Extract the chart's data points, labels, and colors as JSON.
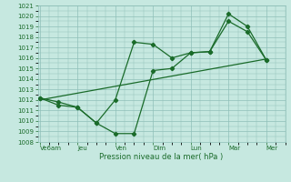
{
  "xlabel": "Pression niveau de la mer( hPa )",
  "bg_color": "#c6e8e0",
  "grid_color": "#8fbfb8",
  "line_color": "#1a6b2a",
  "tick_label_color": "#1a6b2a",
  "ylim": [
    1008,
    1021
  ],
  "yticks": [
    1008,
    1009,
    1010,
    1011,
    1012,
    1013,
    1014,
    1015,
    1016,
    1017,
    1018,
    1019,
    1020,
    1021
  ],
  "x_labels": [
    "Ve6am",
    "Jeu",
    "Ven",
    "Dim",
    "Lun",
    "Mar",
    "Mer"
  ],
  "x_positions": [
    0,
    1,
    2,
    3,
    4,
    5,
    6
  ],
  "xlim": [
    -0.05,
    6.5
  ],
  "line1": {
    "x": [
      0,
      0.5,
      1.0,
      1.5,
      2.0,
      2.5,
      3.0,
      3.5,
      4.0,
      4.5,
      5.0,
      5.5,
      6.0
    ],
    "y": [
      1012.2,
      1011.8,
      1011.3,
      1009.8,
      1012.0,
      1017.5,
      1017.3,
      1016.0,
      1016.5,
      1016.6,
      1020.2,
      1019.0,
      1015.8
    ]
  },
  "line2": {
    "x": [
      0,
      0.5,
      1.0,
      1.5,
      2.0,
      2.5,
      3.0,
      3.5,
      4.0,
      4.5,
      5.0,
      5.5,
      6.0
    ],
    "y": [
      1012.2,
      1011.5,
      1011.3,
      1009.8,
      1008.8,
      1008.8,
      1014.8,
      1015.0,
      1016.5,
      1016.6,
      1019.5,
      1018.5,
      1015.8
    ]
  },
  "line3": {
    "x": [
      0,
      6.0
    ],
    "y": [
      1012.0,
      1015.9
    ]
  }
}
